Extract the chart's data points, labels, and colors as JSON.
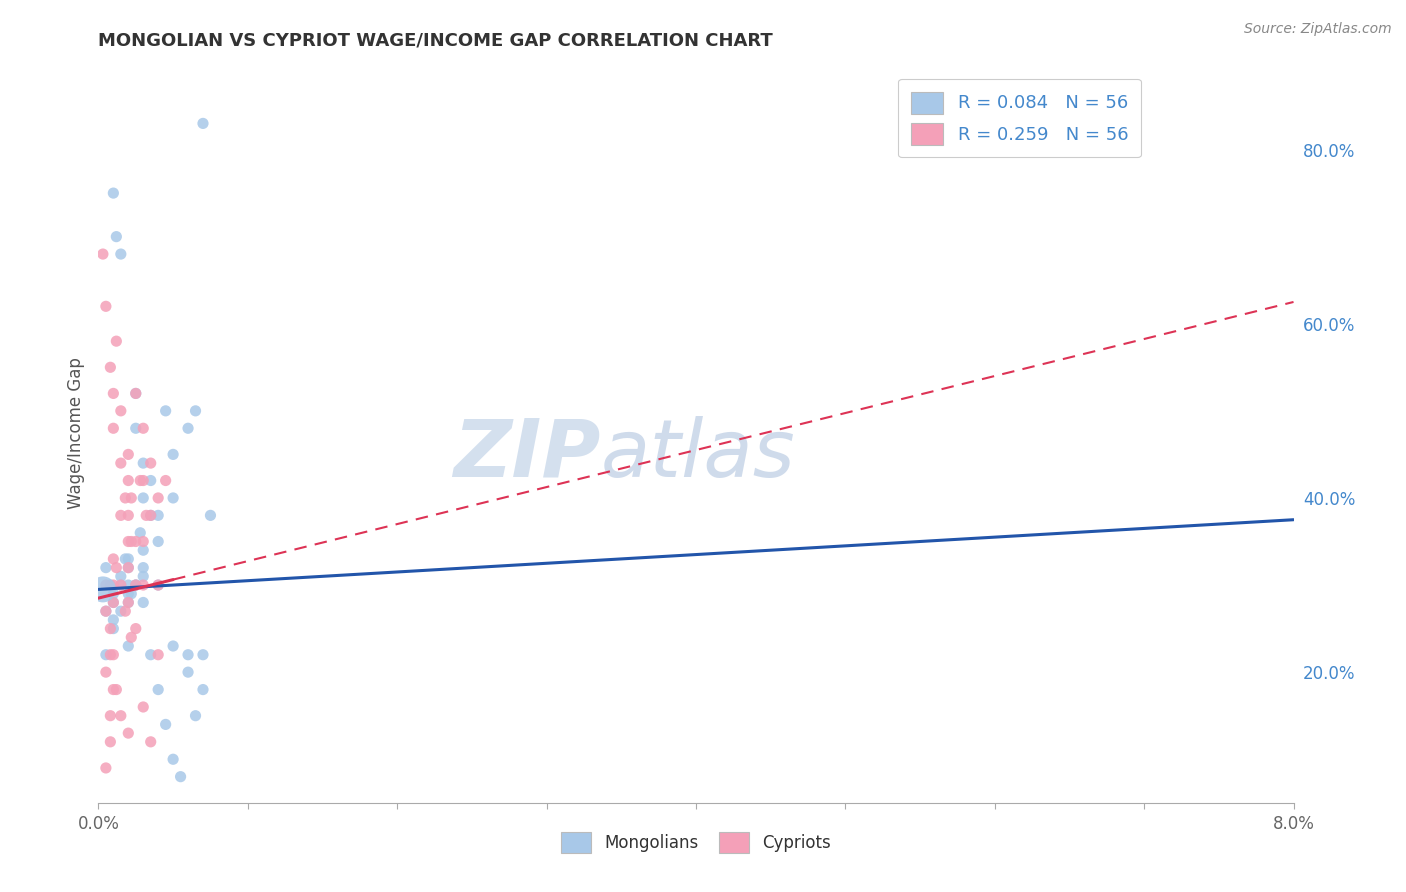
{
  "title": "MONGOLIAN VS CYPRIOT WAGE/INCOME GAP CORRELATION CHART",
  "source": "Source: ZipAtlas.com",
  "ylabel": "Wage/Income Gap",
  "xlim": [
    0.0,
    0.08
  ],
  "ylim": [
    0.05,
    0.9
  ],
  "right_yticks": [
    0.2,
    0.4,
    0.6,
    0.8
  ],
  "right_yticklabels": [
    "20.0%",
    "40.0%",
    "60.0%",
    "80.0%"
  ],
  "xtick_vals": [
    0.0,
    0.01,
    0.02,
    0.03,
    0.04,
    0.05,
    0.06,
    0.07,
    0.08
  ],
  "xticklabels": [
    "0.0%",
    "",
    "",
    "",
    "",
    "",
    "",
    "",
    "8.0%"
  ],
  "mongolian_R": 0.084,
  "mongolian_N": 56,
  "cypriot_R": 0.259,
  "cypriot_N": 56,
  "mongolian_color": "#a8c8e8",
  "cypriot_color": "#f4a0b8",
  "mongolian_line_color": "#2255aa",
  "cypriot_line_color": "#dd3355",
  "background_color": "#ffffff",
  "grid_color": "#c8d4e8",
  "watermark": "ZIPAtlas",
  "watermark_color_zip": "#b8cce4",
  "watermark_color_atlas": "#a0b8d8",
  "mon_x": [
    0.0005,
    0.0008,
    0.001,
    0.001,
    0.0012,
    0.0015,
    0.0015,
    0.002,
    0.002,
    0.002,
    0.0025,
    0.0025,
    0.003,
    0.003,
    0.003,
    0.0035,
    0.0035,
    0.004,
    0.004,
    0.004,
    0.0005,
    0.001,
    0.001,
    0.0015,
    0.002,
    0.002,
    0.0025,
    0.003,
    0.003,
    0.0005,
    0.001,
    0.0015,
    0.002,
    0.0025,
    0.003,
    0.0045,
    0.005,
    0.005,
    0.006,
    0.0065,
    0.007,
    0.0035,
    0.004,
    0.005,
    0.006,
    0.007,
    0.0075,
    0.0045,
    0.005,
    0.006,
    0.0065,
    0.007,
    0.0055,
    0.0028,
    0.0018,
    0.0022
  ],
  "mon_y": [
    0.32,
    0.3,
    0.75,
    0.28,
    0.7,
    0.68,
    0.3,
    0.32,
    0.3,
    0.28,
    0.52,
    0.48,
    0.44,
    0.4,
    0.32,
    0.42,
    0.38,
    0.35,
    0.38,
    0.3,
    0.27,
    0.29,
    0.26,
    0.31,
    0.33,
    0.29,
    0.3,
    0.28,
    0.31,
    0.22,
    0.25,
    0.27,
    0.23,
    0.3,
    0.34,
    0.5,
    0.45,
    0.4,
    0.48,
    0.5,
    0.83,
    0.22,
    0.18,
    0.23,
    0.22,
    0.22,
    0.38,
    0.14,
    0.1,
    0.2,
    0.15,
    0.18,
    0.08,
    0.36,
    0.33,
    0.29
  ],
  "cyp_x": [
    0.0003,
    0.0005,
    0.0005,
    0.0008,
    0.001,
    0.001,
    0.001,
    0.0012,
    0.0015,
    0.0015,
    0.002,
    0.002,
    0.002,
    0.002,
    0.0022,
    0.0025,
    0.0025,
    0.003,
    0.003,
    0.003,
    0.0035,
    0.0035,
    0.004,
    0.004,
    0.0045,
    0.0005,
    0.001,
    0.0015,
    0.002,
    0.0025,
    0.001,
    0.0008,
    0.0012,
    0.0018,
    0.0022,
    0.0028,
    0.0032,
    0.0008,
    0.0005,
    0.0015,
    0.002,
    0.0025,
    0.001,
    0.0012,
    0.0008,
    0.0018,
    0.0022,
    0.003,
    0.004,
    0.0005,
    0.0008,
    0.001,
    0.0015,
    0.002,
    0.003,
    0.0035
  ],
  "cyp_y": [
    0.68,
    0.62,
    0.3,
    0.55,
    0.52,
    0.48,
    0.3,
    0.58,
    0.5,
    0.44,
    0.42,
    0.38,
    0.45,
    0.32,
    0.4,
    0.52,
    0.35,
    0.48,
    0.42,
    0.35,
    0.44,
    0.38,
    0.4,
    0.3,
    0.42,
    0.27,
    0.33,
    0.38,
    0.35,
    0.3,
    0.28,
    0.25,
    0.32,
    0.4,
    0.35,
    0.42,
    0.38,
    0.22,
    0.2,
    0.3,
    0.28,
    0.25,
    0.22,
    0.18,
    0.15,
    0.27,
    0.24,
    0.3,
    0.22,
    0.09,
    0.12,
    0.18,
    0.15,
    0.13,
    0.16,
    0.12
  ]
}
